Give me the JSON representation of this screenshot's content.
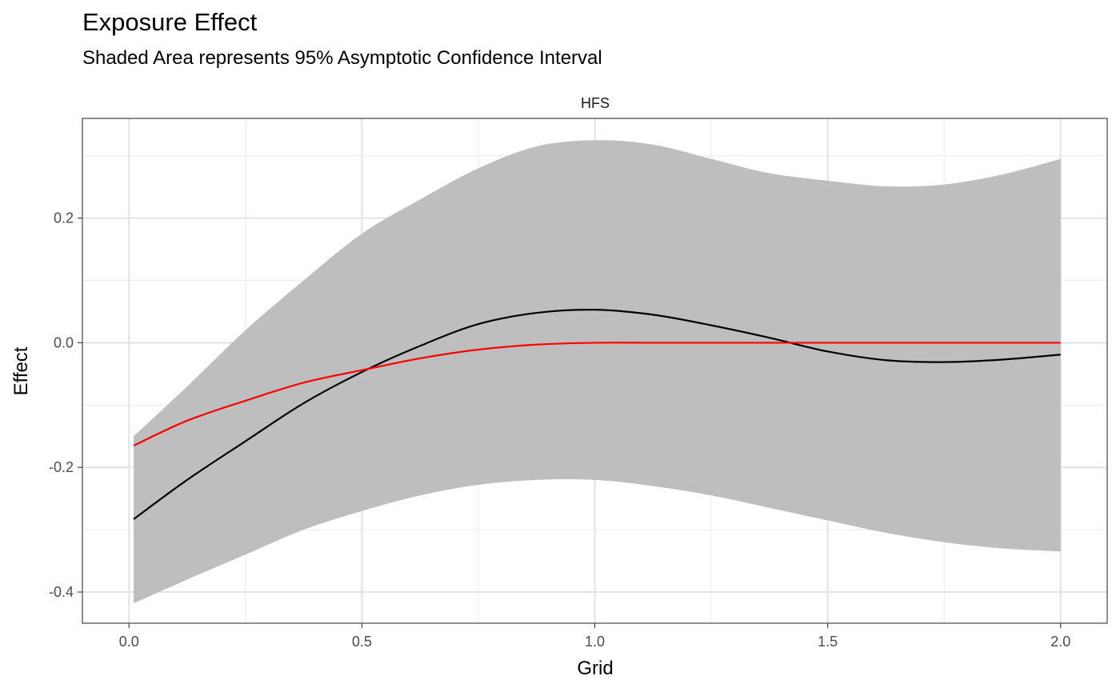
{
  "chart_data": {
    "type": "line",
    "title": "Exposure Effect",
    "subtitle": "Shaded Area represents 95% Asymptotic Confidence Interval",
    "facet_label": "HFS",
    "xlabel": "Grid",
    "ylabel": "Effect",
    "xlim": [
      -0.1,
      2.1
    ],
    "ylim": [
      -0.45,
      0.36
    ],
    "x_ticks": [
      0.0,
      0.5,
      1.0,
      1.5,
      2.0
    ],
    "x_tick_labels": [
      "0.0",
      "0.5",
      "1.0",
      "1.5",
      "2.0"
    ],
    "y_ticks": [
      -0.4,
      -0.2,
      0.0,
      0.2
    ],
    "y_tick_labels": [
      "-0.4",
      "-0.2",
      "0.0",
      "0.2"
    ],
    "grid": true,
    "legend": "none",
    "x": [
      0.01,
      0.125,
      0.25,
      0.375,
      0.5,
      0.625,
      0.75,
      0.875,
      1.0,
      1.125,
      1.25,
      1.375,
      1.5,
      1.625,
      1.75,
      1.875,
      2.0
    ],
    "ribbon": {
      "color": "#bebebe",
      "upper": [
        -0.15,
        -0.07,
        0.02,
        0.1,
        0.175,
        0.23,
        0.28,
        0.315,
        0.325,
        0.318,
        0.295,
        0.272,
        0.26,
        0.251,
        0.254,
        0.27,
        0.295
      ],
      "lower": [
        -0.418,
        -0.38,
        -0.34,
        -0.3,
        -0.27,
        -0.245,
        -0.228,
        -0.22,
        -0.22,
        -0.23,
        -0.245,
        -0.265,
        -0.285,
        -0.305,
        -0.32,
        -0.33,
        -0.335
      ]
    },
    "series": [
      {
        "color": "#000000",
        "values": [
          -0.283,
          -0.22,
          -0.158,
          -0.097,
          -0.047,
          -0.005,
          0.03,
          0.048,
          0.053,
          0.045,
          0.028,
          0.008,
          -0.014,
          -0.028,
          -0.031,
          -0.027,
          -0.019
        ]
      },
      {
        "color": "#ff0000",
        "values": [
          -0.165,
          -0.125,
          -0.093,
          -0.064,
          -0.044,
          -0.025,
          -0.011,
          -0.003,
          0.0,
          0.0,
          0.0,
          0.0,
          0.0,
          0.0,
          0.0,
          0.0,
          0.0
        ]
      }
    ]
  }
}
